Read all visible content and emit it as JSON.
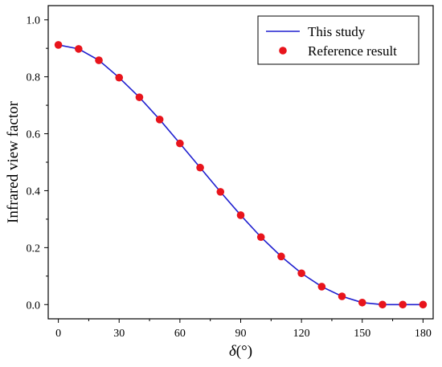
{
  "chart_data": {
    "type": "line",
    "xlabel_symbol": "δ",
    "xlabel_unit": "(°)",
    "ylabel": "Infrared view factor",
    "xlim": [
      -5,
      185
    ],
    "ylim": [
      -0.05,
      1.05
    ],
    "x_ticks": [
      0,
      30,
      60,
      90,
      120,
      150,
      180
    ],
    "y_ticks": [
      0.0,
      0.2,
      0.4,
      0.6,
      0.8,
      1.0
    ],
    "x_tick_labels": [
      "0",
      "30",
      "60",
      "90",
      "120",
      "150",
      "180"
    ],
    "y_tick_labels": [
      "0.0",
      "0.2",
      "0.4",
      "0.6",
      "0.8",
      "1.0"
    ],
    "legend_position": "top-right",
    "series": [
      {
        "name": "This study",
        "style": "line",
        "color": "#1f1fcf",
        "x": [
          0,
          10,
          20,
          30,
          40,
          50,
          60,
          70,
          80,
          90,
          100,
          110,
          120,
          130,
          140,
          150,
          160,
          170,
          180
        ],
        "y": [
          0.912,
          0.898,
          0.858,
          0.797,
          0.728,
          0.65,
          0.566,
          0.481,
          0.396,
          0.314,
          0.237,
          0.169,
          0.11,
          0.063,
          0.029,
          0.007,
          0.0,
          0.0,
          0.0
        ]
      },
      {
        "name": "Reference result",
        "style": "markers",
        "color": "#e8141c",
        "x": [
          0,
          10,
          20,
          30,
          40,
          50,
          60,
          70,
          80,
          90,
          100,
          110,
          120,
          130,
          140,
          150,
          160,
          170,
          180
        ],
        "y": [
          0.912,
          0.898,
          0.858,
          0.797,
          0.728,
          0.65,
          0.566,
          0.481,
          0.396,
          0.314,
          0.237,
          0.169,
          0.11,
          0.063,
          0.029,
          0.007,
          0.0,
          0.0,
          0.0
        ]
      }
    ]
  }
}
